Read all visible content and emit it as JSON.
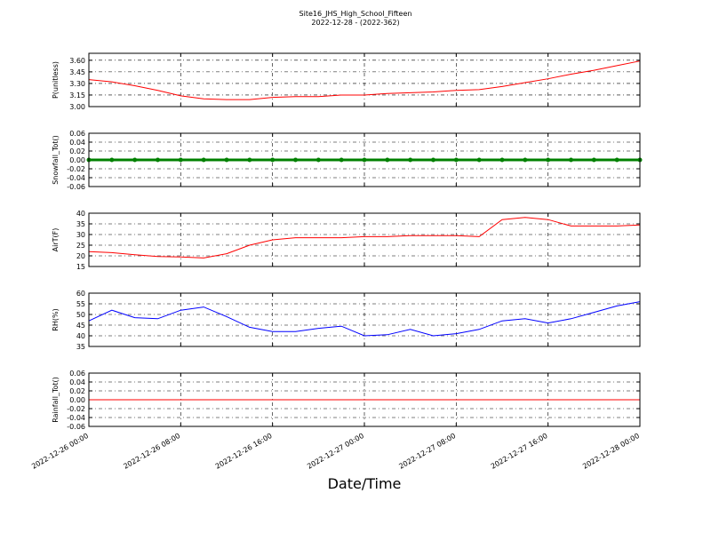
{
  "chart_data": [
    {
      "type": "line",
      "title": "Site16_JHS_High_School_Fifteen",
      "subtitle": "2022-12-28 - (2022-362)",
      "ylabel": "P(unitless)",
      "color": "#ff0000",
      "grid": true,
      "x": [
        "2022-12-26 00:00",
        "2022-12-26 02:00",
        "2022-12-26 04:00",
        "2022-12-26 06:00",
        "2022-12-26 08:00",
        "2022-12-26 10:00",
        "2022-12-26 12:00",
        "2022-12-26 14:00",
        "2022-12-26 16:00",
        "2022-12-26 18:00",
        "2022-12-26 20:00",
        "2022-12-26 22:00",
        "2022-12-27 00:00",
        "2022-12-27 02:00",
        "2022-12-27 04:00",
        "2022-12-27 06:00",
        "2022-12-27 08:00",
        "2022-12-27 10:00",
        "2022-12-27 12:00",
        "2022-12-27 14:00",
        "2022-12-27 16:00",
        "2022-12-27 18:00",
        "2022-12-27 20:00",
        "2022-12-27 22:00",
        "2022-12-28 00:00"
      ],
      "values": [
        3.35,
        3.32,
        3.27,
        3.21,
        3.14,
        3.1,
        3.09,
        3.09,
        3.12,
        3.13,
        3.13,
        3.15,
        3.15,
        3.17,
        3.18,
        3.19,
        3.21,
        3.22,
        3.26,
        3.31,
        3.36,
        3.42,
        3.47,
        3.53,
        3.59
      ],
      "xlim": [
        "2022-12-26 00:00",
        "2022-12-28 00:00"
      ],
      "xticks": [
        "2022-12-26 00:00",
        "2022-12-26 08:00",
        "2022-12-26 16:00",
        "2022-12-27 00:00",
        "2022-12-27 08:00",
        "2022-12-27 16:00",
        "2022-12-28 00:00"
      ],
      "ylim": [
        3.0,
        3.69
      ],
      "yticks": [
        {
          "value": 3,
          "label": "3.00"
        },
        3.15,
        {
          "value": 3.3,
          "label": "3.30"
        },
        3.45,
        {
          "value": 3.6,
          "label": "3.60"
        }
      ]
    },
    {
      "type": "line",
      "ylabel": "Snowfall_Tot()",
      "color": "#008000",
      "marker": "o",
      "grid": true,
      "x": [
        "2022-12-26 00:00",
        "2022-12-26 02:00",
        "2022-12-26 04:00",
        "2022-12-26 06:00",
        "2022-12-26 08:00",
        "2022-12-26 10:00",
        "2022-12-26 12:00",
        "2022-12-26 14:00",
        "2022-12-26 16:00",
        "2022-12-26 18:00",
        "2022-12-26 20:00",
        "2022-12-26 22:00",
        "2022-12-27 00:00",
        "2022-12-27 02:00",
        "2022-12-27 04:00",
        "2022-12-27 06:00",
        "2022-12-27 08:00",
        "2022-12-27 10:00",
        "2022-12-27 12:00",
        "2022-12-27 14:00",
        "2022-12-27 16:00",
        "2022-12-27 18:00",
        "2022-12-27 20:00",
        "2022-12-27 22:00",
        "2022-12-28 00:00"
      ],
      "values": [
        0,
        0,
        0,
        0,
        0,
        0,
        0,
        0,
        0,
        0,
        0,
        0,
        0,
        0,
        0,
        0,
        0,
        0,
        0,
        0,
        0,
        0,
        0,
        0,
        0
      ],
      "xlim": [
        "2022-12-26 00:00",
        "2022-12-28 00:00"
      ],
      "xticks": [
        "2022-12-26 00:00",
        "2022-12-26 08:00",
        "2022-12-26 16:00",
        "2022-12-27 00:00",
        "2022-12-27 08:00",
        "2022-12-27 16:00",
        "2022-12-28 00:00"
      ],
      "ylim": [
        -0.06,
        0.06
      ],
      "yticks": [
        -0.06,
        -0.04,
        -0.02,
        {
          "value": 0,
          "label": "0.00"
        },
        0.02,
        0.04,
        0.06
      ]
    },
    {
      "type": "line",
      "ylabel": "AirT(F)",
      "color": "#ff0000",
      "grid": true,
      "x": [
        "2022-12-26 00:00",
        "2022-12-26 02:00",
        "2022-12-26 04:00",
        "2022-12-26 06:00",
        "2022-12-26 08:00",
        "2022-12-26 10:00",
        "2022-12-26 12:00",
        "2022-12-26 14:00",
        "2022-12-26 16:00",
        "2022-12-26 18:00",
        "2022-12-26 20:00",
        "2022-12-26 22:00",
        "2022-12-27 00:00",
        "2022-12-27 02:00",
        "2022-12-27 04:00",
        "2022-12-27 06:00",
        "2022-12-27 08:00",
        "2022-12-27 10:00",
        "2022-12-27 12:00",
        "2022-12-27 14:00",
        "2022-12-27 16:00",
        "2022-12-27 18:00",
        "2022-12-27 20:00",
        "2022-12-27 22:00",
        "2022-12-28 00:00"
      ],
      "values": [
        22,
        21.5,
        20.5,
        19.7,
        19.5,
        19,
        21,
        25,
        27.5,
        28.5,
        28.5,
        28.5,
        29,
        29,
        29.5,
        29.5,
        29.5,
        29,
        37,
        38,
        37,
        34,
        34,
        34,
        34.5
      ],
      "xlim": [
        "2022-12-26 00:00",
        "2022-12-28 00:00"
      ],
      "xticks": [
        "2022-12-26 00:00",
        "2022-12-26 08:00",
        "2022-12-26 16:00",
        "2022-12-27 00:00",
        "2022-12-27 08:00",
        "2022-12-27 16:00",
        "2022-12-28 00:00"
      ],
      "ylim": [
        15,
        40
      ],
      "yticks": [
        15,
        20,
        25,
        30,
        35,
        40
      ]
    },
    {
      "type": "line",
      "ylabel": "RH(%)",
      "color": "#0000ff",
      "grid": true,
      "x": [
        "2022-12-26 00:00",
        "2022-12-26 02:00",
        "2022-12-26 04:00",
        "2022-12-26 06:00",
        "2022-12-26 08:00",
        "2022-12-26 10:00",
        "2022-12-26 12:00",
        "2022-12-26 14:00",
        "2022-12-26 16:00",
        "2022-12-26 18:00",
        "2022-12-26 20:00",
        "2022-12-26 22:00",
        "2022-12-27 00:00",
        "2022-12-27 02:00",
        "2022-12-27 04:00",
        "2022-12-27 06:00",
        "2022-12-27 08:00",
        "2022-12-27 10:00",
        "2022-12-27 12:00",
        "2022-12-27 14:00",
        "2022-12-27 16:00",
        "2022-12-27 18:00",
        "2022-12-27 20:00",
        "2022-12-27 22:00",
        "2022-12-28 00:00"
      ],
      "values": [
        47,
        52,
        48.5,
        48,
        52,
        53.5,
        49,
        44,
        42,
        42,
        43.5,
        44.5,
        40,
        40.5,
        43,
        40,
        41,
        43,
        47,
        48,
        46,
        48,
        51,
        54,
        56
      ],
      "xlim": [
        "2022-12-26 00:00",
        "2022-12-28 00:00"
      ],
      "xticks": [
        "2022-12-26 00:00",
        "2022-12-26 08:00",
        "2022-12-26 16:00",
        "2022-12-27 00:00",
        "2022-12-27 08:00",
        "2022-12-27 16:00",
        "2022-12-28 00:00"
      ],
      "ylim": [
        35,
        60
      ],
      "yticks": [
        35,
        40,
        45,
        50,
        55,
        60
      ]
    },
    {
      "type": "line",
      "ylabel": "Rainfall_Tot()",
      "xlabel": "Date/Time",
      "color": "#ff0000",
      "grid": true,
      "x": [
        "2022-12-26 00:00",
        "2022-12-26 02:00",
        "2022-12-26 04:00",
        "2022-12-26 06:00",
        "2022-12-26 08:00",
        "2022-12-26 10:00",
        "2022-12-26 12:00",
        "2022-12-26 14:00",
        "2022-12-26 16:00",
        "2022-12-26 18:00",
        "2022-12-26 20:00",
        "2022-12-26 22:00",
        "2022-12-27 00:00",
        "2022-12-27 02:00",
        "2022-12-27 04:00",
        "2022-12-27 06:00",
        "2022-12-27 08:00",
        "2022-12-27 10:00",
        "2022-12-27 12:00",
        "2022-12-27 14:00",
        "2022-12-27 16:00",
        "2022-12-27 18:00",
        "2022-12-27 20:00",
        "2022-12-27 22:00",
        "2022-12-28 00:00"
      ],
      "values": [
        0,
        0,
        0,
        0,
        0,
        0,
        0,
        0,
        0,
        0,
        0,
        0,
        0,
        0,
        0,
        0,
        0,
        0,
        0,
        0,
        0,
        0,
        0,
        0,
        0
      ],
      "xlim": [
        "2022-12-26 00:00",
        "2022-12-28 00:00"
      ],
      "xticks": [
        "2022-12-26 00:00",
        "2022-12-26 08:00",
        "2022-12-26 16:00",
        "2022-12-27 00:00",
        "2022-12-27 08:00",
        "2022-12-27 16:00",
        "2022-12-28 00:00"
      ],
      "ylim": [
        -0.06,
        0.06
      ],
      "yticks": [
        -0.06,
        -0.04,
        -0.02,
        {
          "value": 0,
          "label": "0.00"
        },
        0.02,
        0.04,
        0.06
      ]
    }
  ]
}
